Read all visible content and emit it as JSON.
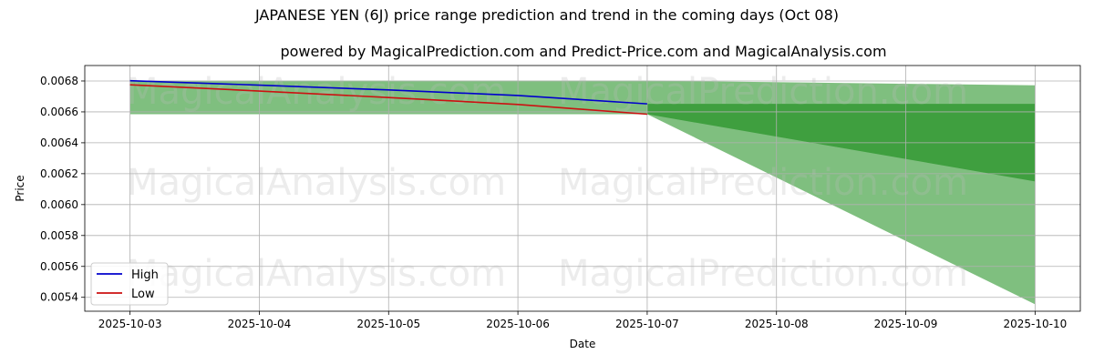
{
  "chart_data": {
    "type": "line",
    "title": "JAPANESE YEN (6J) price range prediction and trend in the coming days (Oct 08)",
    "subtitle": "powered by MagicalPrediction.com and Predict-Price.com and MagicalAnalysis.com",
    "xlabel": "Date",
    "ylabel": "Price",
    "x": [
      "2025-10-03",
      "2025-10-04",
      "2025-10-05",
      "2025-10-06",
      "2025-10-07",
      "2025-10-08",
      "2025-10-09",
      "2025-10-10"
    ],
    "xlim": [
      "2025-10-03",
      "2025-10-10"
    ],
    "ylim": [
      0.00531,
      0.0069
    ],
    "yticks": [
      "0.0054",
      "0.0056",
      "0.0058",
      "0.0060",
      "0.0062",
      "0.0064",
      "0.0066",
      "0.0068"
    ],
    "grid": true,
    "legend_position": "lower-left",
    "series": [
      {
        "name": "High",
        "color": "#0000cc",
        "points": [
          [
            "2025-10-03",
            0.006802
          ],
          [
            "2025-10-04",
            0.006773
          ],
          [
            "2025-10-05",
            0.006742
          ],
          [
            "2025-10-06",
            0.006706
          ],
          [
            "2025-10-07",
            0.006652
          ]
        ]
      },
      {
        "name": "Low",
        "color": "#cc1111",
        "points": [
          [
            "2025-10-03",
            0.006775
          ],
          [
            "2025-10-04",
            0.006735
          ],
          [
            "2025-10-05",
            0.006693
          ],
          [
            "2025-10-06",
            0.006648
          ],
          [
            "2025-10-07",
            0.006585
          ]
        ]
      }
    ],
    "bands": [
      {
        "color": "#7fbf7f",
        "x": [
          "2025-10-03",
          "2025-10-07"
        ],
        "upper": [
          0.006802,
          0.006802
        ],
        "lower": [
          0.006585,
          0.006585
        ]
      },
      {
        "color": "#7fbf7f",
        "x": [
          "2025-10-07",
          "2025-10-10"
        ],
        "upper": [
          0.006802,
          0.006772
        ],
        "lower": [
          0.006585,
          0.005355
        ]
      },
      {
        "color": "#3f9f3f",
        "x": [
          "2025-10-07",
          "2025-10-10"
        ],
        "upper": [
          0.006652,
          0.006652
        ],
        "lower": [
          0.006585,
          0.00615
        ]
      }
    ],
    "watermarks": [
      "MagicalAnalysis.com",
      "MagicalPrediction.com",
      "MagicalAnalysis.com",
      "MagicalPrediction.com",
      "MagicalAnalysis.com",
      "MagicalPrediction.com"
    ]
  }
}
